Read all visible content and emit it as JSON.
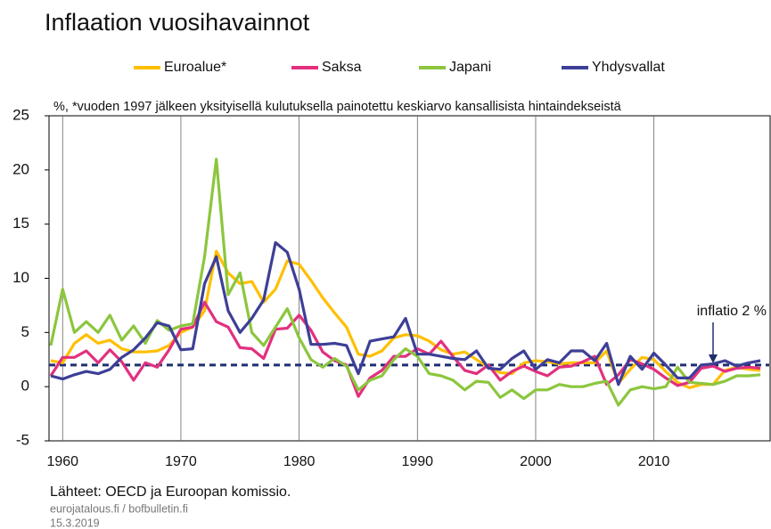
{
  "chart_data": {
    "type": "line",
    "title": "Inflaation vuosihavainnot",
    "subtitle": "%, *vuoden 1997 jälkeen yksityisellä kulutuksella painotettu keskiarvo kansallisista hintaindekseistä",
    "source": "Lähteet: OECD ja Euroopan komissio.",
    "footer": "eurojatalous.fi / bofbulletin.fi",
    "date": "15.3.2019",
    "annotation": "inflatio 2 %",
    "reference_line": {
      "value": 2,
      "color": "#1f2f6e"
    },
    "x": [
      1959,
      1960,
      1961,
      1962,
      1963,
      1964,
      1965,
      1966,
      1967,
      1968,
      1969,
      1970,
      1971,
      1972,
      1973,
      1974,
      1975,
      1976,
      1977,
      1978,
      1979,
      1980,
      1981,
      1982,
      1983,
      1984,
      1985,
      1986,
      1987,
      1988,
      1989,
      1990,
      1991,
      1992,
      1993,
      1994,
      1995,
      1996,
      1997,
      1998,
      1999,
      2000,
      2001,
      2002,
      2003,
      2004,
      2005,
      2006,
      2007,
      2008,
      2009,
      2010,
      2011,
      2012,
      2013,
      2014,
      2015,
      2016,
      2017,
      2018,
      2019
    ],
    "series": [
      {
        "name": "Euroalue*",
        "color": "#ffbf00",
        "values": [
          2.4,
          2.2,
          4.0,
          4.8,
          4.0,
          4.3,
          3.5,
          3.2,
          3.2,
          3.3,
          3.8,
          5.0,
          5.5,
          7.0,
          12.5,
          10.5,
          9.5,
          9.7,
          7.8,
          9.0,
          11.6,
          11.3,
          9.8,
          8.2,
          6.8,
          5.5,
          3.0,
          2.8,
          3.3,
          4.5,
          4.8,
          4.7,
          4.2,
          3.4,
          3.0,
          3.2,
          2.5,
          1.8,
          1.3,
          1.2,
          2.2,
          2.4,
          2.3,
          2.1,
          2.2,
          2.2,
          2.2,
          3.3,
          0.3,
          1.6,
          2.7,
          2.5,
          1.4,
          0.4,
          -0.1,
          0.2,
          0.2,
          1.5,
          1.8,
          1.6,
          1.5
        ]
      },
      {
        "name": "Saksa",
        "color": "#e2307f",
        "values": [
          1.0,
          2.7,
          2.7,
          3.3,
          2.2,
          3.4,
          2.3,
          0.6,
          2.2,
          1.8,
          3.4,
          5.3,
          5.5,
          7.8,
          6.0,
          5.5,
          3.6,
          3.5,
          2.6,
          5.3,
          5.4,
          6.6,
          5.2,
          3.2,
          2.4,
          2.0,
          -0.9,
          0.8,
          1.5,
          2.8,
          2.8,
          3.5,
          3.0,
          4.2,
          2.8,
          1.5,
          1.2,
          2.0,
          0.6,
          1.4,
          1.9,
          1.4,
          1.0,
          1.8,
          1.9,
          2.3,
          2.8,
          0.2,
          1.1,
          2.5,
          2.1,
          1.6,
          0.8,
          0.1,
          0.4,
          1.7,
          1.9,
          1.4,
          1.7,
          1.8,
          1.7
        ]
      },
      {
        "name": "Japani",
        "color": "#8cc63e",
        "values": [
          3.8,
          9.0,
          5.0,
          6.0,
          5.0,
          6.6,
          4.3,
          5.6,
          4.0,
          6.1,
          5.2,
          5.6,
          5.8,
          12.0,
          21.0,
          8.5,
          10.5,
          5.0,
          3.8,
          5.5,
          7.2,
          4.5,
          2.5,
          1.8,
          2.6,
          1.9,
          -0.3,
          0.6,
          1.0,
          2.5,
          3.5,
          2.8,
          1.2,
          1.0,
          0.6,
          -0.3,
          0.5,
          0.4,
          -1.0,
          -0.3,
          -1.1,
          -0.3,
          -0.3,
          0.2,
          0.0,
          0.0,
          0.3,
          0.5,
          -1.7,
          -0.3,
          0.0,
          -0.2,
          0.0,
          1.8,
          0.4,
          0.3,
          0.2,
          0.5,
          1.0,
          1.0,
          1.1
        ]
      },
      {
        "name": "Yhdysvallat",
        "color": "#3d3f97",
        "values": [
          1.0,
          0.7,
          1.1,
          1.4,
          1.2,
          1.6,
          2.7,
          3.4,
          4.5,
          5.9,
          5.6,
          3.4,
          3.5,
          9.5,
          12.0,
          7.0,
          5.0,
          6.3,
          8.0,
          13.3,
          12.4,
          9.0,
          3.9,
          3.9,
          4.0,
          3.8,
          1.2,
          4.2,
          4.4,
          4.6,
          6.3,
          3.0,
          3.0,
          2.8,
          2.6,
          2.5,
          3.3,
          1.7,
          1.6,
          2.6,
          3.3,
          1.6,
          2.5,
          2.2,
          3.3,
          3.3,
          2.4,
          4.0,
          0.2,
          2.8,
          1.6,
          3.1,
          2.0,
          0.8,
          0.8,
          2.0,
          2.1,
          2.4,
          1.9,
          2.2,
          2.4
        ]
      }
    ],
    "xlim": [
      1958.85,
      2019.9
    ],
    "xticks": [
      1960,
      1970,
      1980,
      1990,
      2000,
      2010
    ],
    "ylim": [
      -5,
      25
    ],
    "yticks": [
      -5,
      0,
      5,
      10,
      15,
      20,
      25
    ],
    "grid": true
  }
}
